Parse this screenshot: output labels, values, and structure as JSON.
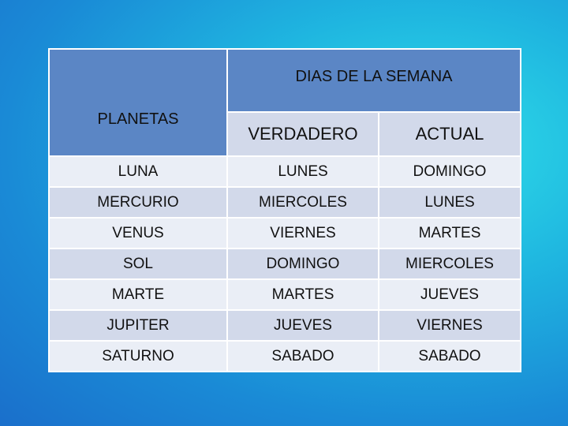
{
  "table": {
    "header_col": "PLANETAS",
    "header_group": "DIAS  DE LA SEMANA",
    "subheaders": [
      "VERDADERO",
      "ACTUAL"
    ],
    "rows": [
      [
        "LUNA",
        "LUNES",
        "DOMINGO"
      ],
      [
        "MERCURIO",
        "MIERCOLES",
        "LUNES"
      ],
      [
        "VENUS",
        "VIERNES",
        "MARTES"
      ],
      [
        "SOL",
        "DOMINGO",
        "MIERCOLES"
      ],
      [
        "MARTE",
        "MARTES",
        "JUEVES"
      ],
      [
        "JUPITER",
        "JUEVES",
        "VIERNES"
      ],
      [
        "SATURNO",
        "SABADO",
        "SABADO"
      ]
    ]
  },
  "colors": {
    "header_bg": "#5b86c5",
    "planetas_text": "#f07c2a",
    "row_dark": "#d2d9ea",
    "row_light": "#eaeef6"
  }
}
